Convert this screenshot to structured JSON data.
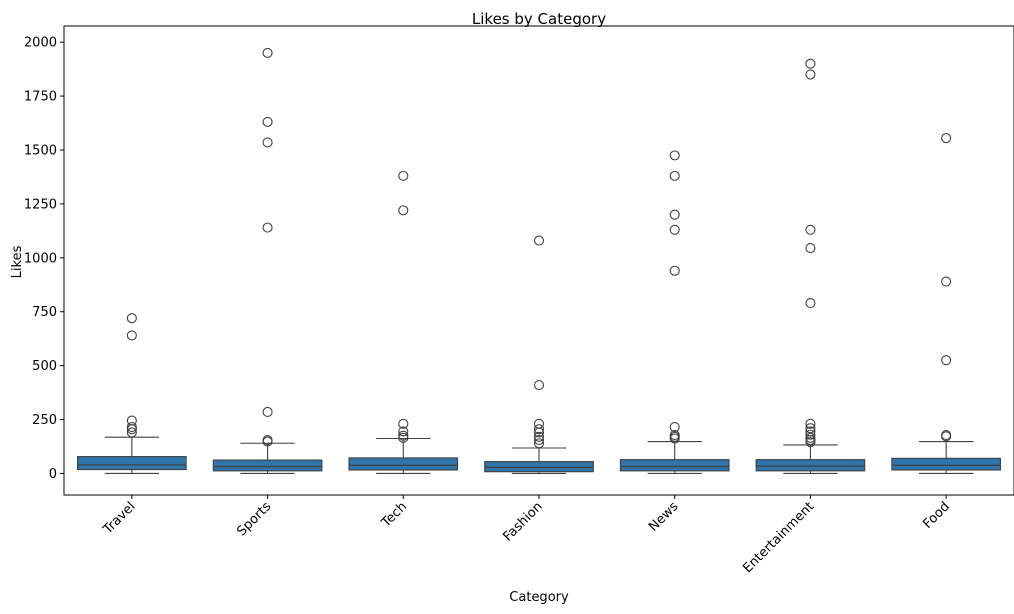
{
  "chart_data": {
    "type": "box",
    "title": "Likes by Category",
    "xlabel": "Category",
    "ylabel": "Likes",
    "ylim": [
      -100,
      2075
    ],
    "yticks": [
      0,
      250,
      500,
      750,
      1000,
      1250,
      1500,
      1750,
      2000
    ],
    "grid": false,
    "box_color": "#2f75ac",
    "line_color": "#3f3f3f",
    "categories": [
      "Travel",
      "Sports",
      "Tech",
      "Fashion",
      "News",
      "Entertainment",
      "Food"
    ],
    "series": [
      {
        "whisker_low": 0,
        "q1": 18,
        "median": 40,
        "q3": 78,
        "whisker_high": 168,
        "outliers": [
          190,
          205,
          215,
          245,
          640,
          720
        ]
      },
      {
        "whisker_low": 0,
        "q1": 12,
        "median": 32,
        "q3": 62,
        "whisker_high": 140,
        "outliers": [
          148,
          155,
          285,
          1140,
          1535,
          1630,
          1950
        ]
      },
      {
        "whisker_low": 0,
        "q1": 16,
        "median": 38,
        "q3": 72,
        "whisker_high": 162,
        "outliers": [
          165,
          175,
          195,
          230,
          1220,
          1380
        ]
      },
      {
        "whisker_low": 0,
        "q1": 8,
        "median": 28,
        "q3": 55,
        "whisker_high": 118,
        "outliers": [
          140,
          155,
          170,
          190,
          205,
          230,
          410,
          1080
        ]
      },
      {
        "whisker_low": 0,
        "q1": 12,
        "median": 32,
        "q3": 64,
        "whisker_high": 148,
        "outliers": [
          162,
          170,
          178,
          215,
          940,
          1130,
          1200,
          1380,
          1475
        ]
      },
      {
        "whisker_low": 0,
        "q1": 12,
        "median": 34,
        "q3": 64,
        "whisker_high": 132,
        "outliers": [
          145,
          155,
          165,
          180,
          195,
          210,
          230,
          790,
          1045,
          1130,
          1850,
          1900
        ]
      },
      {
        "whisker_low": 0,
        "q1": 16,
        "median": 38,
        "q3": 70,
        "whisker_high": 148,
        "outliers": [
          172,
          178,
          525,
          890,
          1555
        ]
      }
    ]
  }
}
